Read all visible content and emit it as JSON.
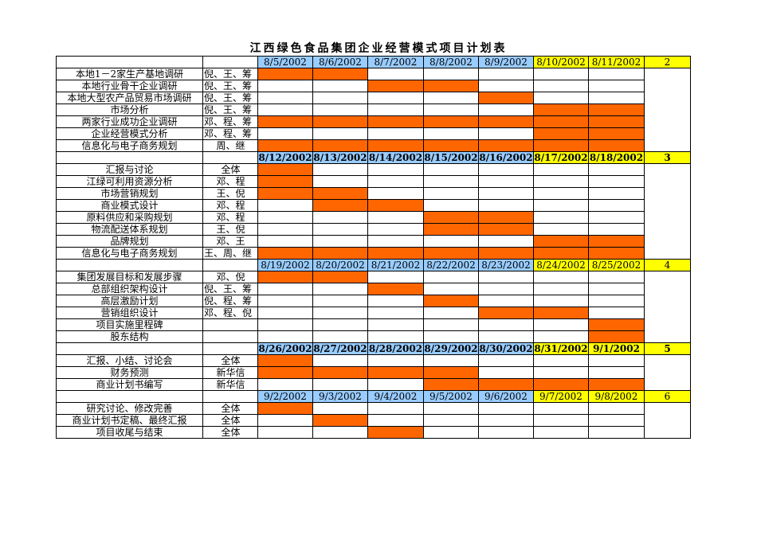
{
  "title": "江西绿色食品集团企业经营模式项目计划表",
  "colors": {
    "weekday": "#99ccff",
    "weekend": "#ffff00",
    "bar": "#ff6600"
  },
  "sections": [
    {
      "week": "2",
      "bold": false,
      "dates": [
        "8/5/2002",
        "8/6/2002",
        "8/7/2002",
        "8/8/2002",
        "8/9/2002",
        "8/10/2002",
        "8/11/2002"
      ],
      "tasks": [
        {
          "name": "本地1－2家生产基地调研",
          "who": "倪、王、筹",
          "fill": [
            1,
            1,
            0,
            0,
            0,
            0,
            0
          ]
        },
        {
          "name": "本地行业骨干企业调研",
          "who": "倪、王、筹",
          "fill": [
            0,
            0,
            1,
            1,
            0,
            0,
            0
          ]
        },
        {
          "name": "本地大型农产品贸易市场调研",
          "who": "倪、王、筹",
          "fill": [
            0,
            0,
            0,
            0,
            1,
            0,
            0
          ]
        },
        {
          "name": "市场分析",
          "who": "倪、王、筹",
          "fill": [
            0,
            0,
            0,
            0,
            0,
            1,
            1
          ]
        },
        {
          "name": "两家行业成功企业调研",
          "who": "邓、程、筹",
          "fill": [
            1,
            1,
            1,
            1,
            1,
            1,
            1
          ]
        },
        {
          "name": "企业经营模式分析",
          "who": "邓、程、筹",
          "fill": [
            0,
            0,
            0,
            0,
            0,
            1,
            1
          ]
        },
        {
          "name": "信息化与电子商务规划",
          "who": "周、继",
          "fill": [
            1,
            1,
            1,
            1,
            1,
            1,
            1
          ]
        }
      ]
    },
    {
      "week": "3",
      "bold": true,
      "dates": [
        "8/12/2002",
        "8/13/2002",
        "8/14/2002",
        "8/15/2002",
        "8/16/2002",
        "8/17/2002",
        "8/18/2002"
      ],
      "tasks": [
        {
          "name": "汇报与讨论",
          "who": "全体",
          "fill": [
            1,
            0,
            0,
            0,
            0,
            0,
            0
          ]
        },
        {
          "name": "江绿可利用资源分析",
          "who": "邓、程",
          "fill": [
            1,
            0,
            0,
            0,
            0,
            0,
            0
          ]
        },
        {
          "name": "市场营销规划",
          "who": "王、倪",
          "fill": [
            1,
            1,
            0,
            0,
            0,
            0,
            0
          ]
        },
        {
          "name": "商业模式设计",
          "who": "邓、程",
          "fill": [
            0,
            1,
            1,
            0,
            0,
            0,
            0
          ]
        },
        {
          "name": "原料供应和采购规划",
          "who": "邓、程",
          "fill": [
            0,
            0,
            0,
            1,
            1,
            0,
            0
          ]
        },
        {
          "name": "物流配送体系规划",
          "who": "王、倪",
          "fill": [
            0,
            0,
            0,
            1,
            1,
            0,
            0
          ]
        },
        {
          "name": "品牌规划",
          "who": "邓、王",
          "fill": [
            0,
            0,
            0,
            0,
            0,
            1,
            1
          ]
        },
        {
          "name": "信息化与电子商务规划",
          "who": "王、周、继",
          "fill": [
            1,
            1,
            1,
            1,
            1,
            1,
            1
          ]
        }
      ]
    },
    {
      "week": "4",
      "bold": false,
      "dates": [
        "8/19/2002",
        "8/20/2002",
        "8/21/2002",
        "8/22/2002",
        "8/23/2002",
        "8/24/2002",
        "8/25/2002"
      ],
      "tasks": [
        {
          "name": "集团发展目标和发展步骤",
          "who": "邓、倪",
          "fill": [
            1,
            1,
            0,
            0,
            0,
            0,
            0
          ]
        },
        {
          "name": "总部组织架构设计",
          "who": "倪、王、筹",
          "fill": [
            0,
            0,
            1,
            0,
            0,
            0,
            0
          ]
        },
        {
          "name": "高层激励计划",
          "who": "倪、程、筹",
          "fill": [
            0,
            0,
            0,
            1,
            0,
            0,
            0
          ]
        },
        {
          "name": "营销组织设计",
          "who": "邓、程、倪",
          "fill": [
            0,
            0,
            0,
            0,
            1,
            1,
            0
          ]
        },
        {
          "name": "项目实施里程碑",
          "who": "",
          "fill": [
            0,
            0,
            0,
            0,
            0,
            0,
            1
          ]
        },
        {
          "name": "股东结构",
          "who": "",
          "fill": [
            0,
            0,
            0,
            0,
            0,
            0,
            1
          ]
        }
      ]
    },
    {
      "week": "5",
      "bold": true,
      "dates": [
        "8/26/2002",
        "8/27/2002",
        "8/28/2002",
        "8/29/2002",
        "8/30/2002",
        "8/31/2002",
        "9/1/2002"
      ],
      "tasks": [
        {
          "name": "汇报、小结、讨论会",
          "who": "全体",
          "fill": [
            1,
            0,
            0,
            0,
            0,
            0,
            0
          ]
        },
        {
          "name": "财务预测",
          "who": "新华信",
          "fill": [
            1,
            1,
            1,
            1,
            0,
            0,
            0
          ]
        },
        {
          "name": "商业计划书编写",
          "who": "新华信",
          "fill": [
            0,
            0,
            0,
            1,
            1,
            1,
            1
          ]
        }
      ]
    },
    {
      "week": "6",
      "bold": false,
      "dates": [
        "9/2/2002",
        "9/3/2002",
        "9/4/2002",
        "9/5/2002",
        "9/6/2002",
        "9/7/2002",
        "9/8/2002"
      ],
      "tasks": [
        {
          "name": "研究讨论、修改完善",
          "who": "全体",
          "fill": [
            1,
            0,
            0,
            0,
            0,
            0,
            0
          ]
        },
        {
          "name": "商业计划书定稿、最终汇报",
          "who": "全体",
          "fill": [
            0,
            1,
            0,
            0,
            0,
            0,
            0
          ]
        },
        {
          "name": "项目收尾与结束",
          "who": "全体",
          "fill": [
            0,
            0,
            1,
            0,
            0,
            0,
            0
          ]
        }
      ]
    }
  ]
}
